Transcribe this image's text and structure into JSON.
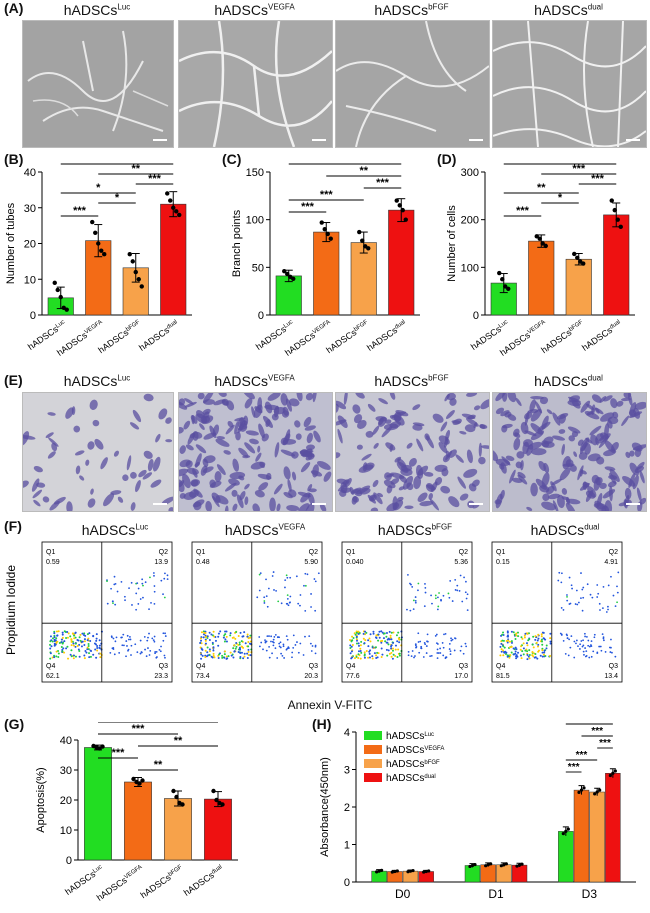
{
  "panel_labels": {
    "A": "(A)",
    "B": "(B)",
    "C": "(C)",
    "D": "(D)",
    "E": "(E)",
    "F": "(F)",
    "G": "(G)",
    "H": "(H)"
  },
  "groups": [
    {
      "base": "hADSCs",
      "sup": "Luc"
    },
    {
      "base": "hADSCs",
      "sup": "VEGFA"
    },
    {
      "base": "hADSCs",
      "sup": "bFGF"
    },
    {
      "base": "hADSCs",
      "sup": "dual"
    }
  ],
  "colors": {
    "Luc": "#22dd22",
    "VEGFA": "#f36b16",
    "bFGF": "#f7a24a",
    "dual": "#ee1111"
  },
  "flow": {
    "xlabel": "Annexin V-FITC",
    "ylabel": "Propidium Iodide",
    "plots": [
      {
        "q1": "0.59",
        "q2": "13.9",
        "q3": "23.3",
        "q4": "62.1"
      },
      {
        "q1": "0.48",
        "q2": "5.90",
        "q3": "20.3",
        "q4": "73.4"
      },
      {
        "q1": "0.040",
        "q2": "5.36",
        "q3": "17.0",
        "q4": "77.6"
      },
      {
        "q1": "0.15",
        "q2": "4.91",
        "q3": "13.4",
        "q4": "81.5"
      }
    ],
    "quadrant_names": [
      "Q1",
      "Q2",
      "Q3",
      "Q4"
    ]
  },
  "chart_data": [
    {
      "panel": "B",
      "type": "bar",
      "categories": [
        "hADSCs^Luc",
        "hADSCs^VEGFA",
        "hADSCs^bFGF",
        "hADSCs^dual"
      ],
      "values": [
        4.8,
        20.8,
        13.2,
        31
      ],
      "errors": [
        3,
        4.5,
        4,
        3.5
      ],
      "points": [
        [
          9,
          7,
          5,
          2,
          1.5
        ],
        [
          26,
          23,
          20,
          18,
          17
        ],
        [
          17,
          15,
          12,
          10,
          8
        ],
        [
          34,
          32,
          30,
          29,
          28
        ]
      ],
      "ylabel": "Number of tubes",
      "ylim": [
        0,
        40
      ],
      "yticks": [
        0,
        10,
        20,
        30,
        40
      ],
      "sig": [
        {
          "a": 0,
          "b": 3,
          "label": "***"
        },
        {
          "a": 1,
          "b": 3,
          "label": "**"
        },
        {
          "a": 2,
          "b": 3,
          "label": "***"
        },
        {
          "a": 0,
          "b": 2,
          "label": "*"
        },
        {
          "a": 1,
          "b": 2,
          "label": "*"
        },
        {
          "a": 0,
          "b": 1,
          "label": "***"
        }
      ]
    },
    {
      "panel": "C",
      "type": "bar",
      "categories": [
        "hADSCs^Luc",
        "hADSCs^VEGFA",
        "hADSCs^bFGF",
        "hADSCs^dual"
      ],
      "values": [
        41,
        87,
        76,
        110
      ],
      "errors": [
        6,
        10,
        11,
        12
      ],
      "points": [
        [
          46,
          43,
          40,
          38
        ],
        [
          97,
          90,
          85,
          80
        ],
        [
          87,
          78,
          72,
          70
        ],
        [
          120,
          115,
          110,
          100
        ]
      ],
      "ylabel": "Branch points",
      "ylim": [
        0,
        150
      ],
      "yticks": [
        0,
        50,
        100,
        150
      ],
      "sig": [
        {
          "a": 0,
          "b": 3,
          "label": "***"
        },
        {
          "a": 1,
          "b": 3,
          "label": "**"
        },
        {
          "a": 2,
          "b": 3,
          "label": "***"
        },
        {
          "a": 0,
          "b": 2,
          "label": "***"
        },
        {
          "a": 0,
          "b": 1,
          "label": "***"
        }
      ]
    },
    {
      "panel": "D",
      "type": "bar",
      "categories": [
        "hADSCs^Luc",
        "hADSCs^VEGFA",
        "hADSCs^bFGF",
        "hADSCs^dual"
      ],
      "values": [
        67,
        155,
        117,
        210
      ],
      "errors": [
        20,
        13,
        12,
        25
      ],
      "points": [
        [
          88,
          75,
          60,
          55
        ],
        [
          165,
          160,
          150,
          145
        ],
        [
          128,
          120,
          112,
          108
        ],
        [
          240,
          220,
          200,
          185
        ]
      ],
      "ylabel": "Number of cells",
      "ylim": [
        0,
        300
      ],
      "yticks": [
        0,
        100,
        200,
        300
      ],
      "sig": [
        {
          "a": 0,
          "b": 3,
          "label": "***"
        },
        {
          "a": 1,
          "b": 3,
          "label": "***"
        },
        {
          "a": 2,
          "b": 3,
          "label": "***"
        },
        {
          "a": 0,
          "b": 2,
          "label": "**"
        },
        {
          "a": 1,
          "b": 2,
          "label": "*"
        },
        {
          "a": 0,
          "b": 1,
          "label": "***"
        }
      ]
    },
    {
      "panel": "G",
      "type": "bar",
      "categories": [
        "hADSCs^Luc",
        "hADSCs^VEGFA",
        "hADSCs^bFGF",
        "hADSCs^dual"
      ],
      "values": [
        37.5,
        26,
        20.5,
        20.3
      ],
      "errors": [
        0.8,
        1.5,
        2.5,
        2.5
      ],
      "points": [
        [
          38,
          37.5,
          37.2,
          37.8
        ],
        [
          27,
          26,
          25.5,
          26.5
        ],
        [
          23,
          21,
          19,
          18.5
        ],
        [
          23,
          20,
          19,
          18.5
        ]
      ],
      "ylabel": "Apoptosis(%)",
      "ylim": [
        0,
        40
      ],
      "yticks": [
        0,
        10,
        20,
        30,
        40
      ],
      "sig": [
        {
          "a": 0,
          "b": 3,
          "label": "***"
        },
        {
          "a": 0,
          "b": 2,
          "label": "***"
        },
        {
          "a": 1,
          "b": 3,
          "label": "**"
        },
        {
          "a": 0,
          "b": 1,
          "label": "***"
        },
        {
          "a": 1,
          "b": 2,
          "label": "**"
        }
      ]
    },
    {
      "panel": "H",
      "type": "bar",
      "categories": [
        "D0",
        "D1",
        "D3"
      ],
      "series": [
        {
          "name": "hADSCs^Luc",
          "values": [
            0.29,
            0.44,
            1.35
          ],
          "errors": [
            0.04,
            0.05,
            0.12
          ]
        },
        {
          "name": "hADSCs^VEGFA",
          "values": [
            0.28,
            0.46,
            2.45
          ],
          "errors": [
            0.03,
            0.05,
            0.12
          ]
        },
        {
          "name": "hADSCs^bFGF",
          "values": [
            0.29,
            0.46,
            2.4
          ],
          "errors": [
            0.03,
            0.05,
            0.1
          ]
        },
        {
          "name": "hADSCs^dual",
          "values": [
            0.28,
            0.45,
            2.9
          ],
          "errors": [
            0.03,
            0.05,
            0.12
          ]
        }
      ],
      "ylabel": "Absorbance(450nm)",
      "ylim": [
        0,
        4
      ],
      "yticks": [
        0,
        1,
        2,
        3,
        4
      ],
      "legend": "top-left",
      "sig": [
        {
          "a": 0,
          "b": 3,
          "label": "***"
        },
        {
          "a": 1,
          "b": 3,
          "label": "***"
        },
        {
          "a": 2,
          "b": 3,
          "label": "***"
        },
        {
          "a": 0,
          "b": 2,
          "label": "***"
        },
        {
          "a": 0,
          "b": 1,
          "label": "***"
        }
      ]
    }
  ]
}
